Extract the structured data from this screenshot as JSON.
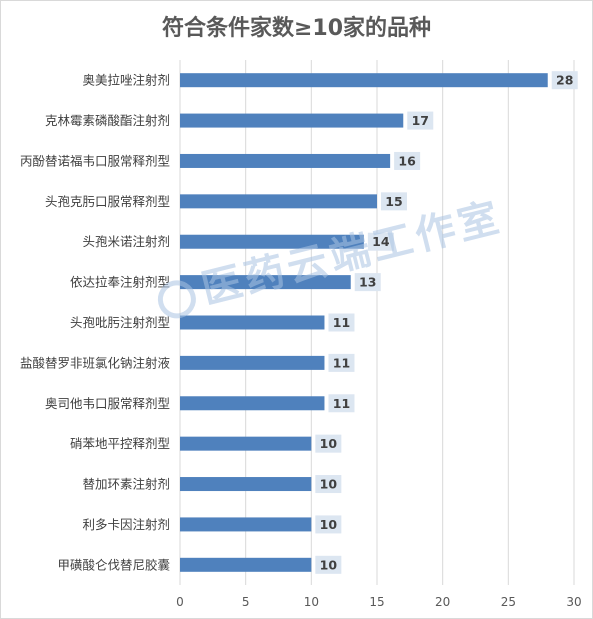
{
  "chart_data": {
    "type": "bar",
    "orientation": "horizontal",
    "title": "符合条件家数≥10家的品种",
    "categories": [
      "奥美拉唑注射剂",
      "克林霉素磷酸酯注射剂",
      "丙酚替诺福韦口服常释剂型",
      "头孢克肟口服常释剂型",
      "头孢米诺注射剂",
      "依达拉奉注射剂型",
      "头孢吡肟注射剂型",
      "盐酸替罗非班氯化钠注射液",
      "奥司他韦口服常释剂型",
      "硝苯地平控释剂型",
      "替加环素注射剂",
      "利多卡因注射剂",
      "甲磺酸仑伐替尼胶囊"
    ],
    "values": [
      28,
      17,
      16,
      15,
      14,
      13,
      11,
      11,
      11,
      10,
      10,
      10,
      10
    ],
    "xlim": [
      0,
      30
    ],
    "xticks": [
      0,
      5,
      10,
      15,
      20,
      25,
      30
    ],
    "grid": true,
    "bar_color": "#4f81bd",
    "label_bg_color": "#dce6f1"
  },
  "watermark": {
    "text": "医药云端工作室"
  }
}
